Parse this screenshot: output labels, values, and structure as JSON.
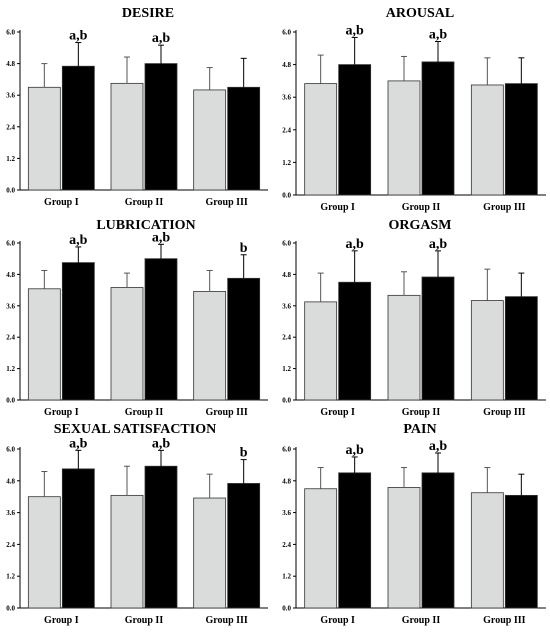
{
  "chart_data": [
    {
      "type": "bar",
      "title": "DESIRE",
      "categories": [
        "Group I",
        "Group II",
        "Group III"
      ],
      "ylim": [
        0,
        6
      ],
      "yticks": [
        "0.0",
        "1.2",
        "2.4",
        "3.6",
        "4.8",
        "6.0"
      ],
      "series": [
        {
          "color": "#d9dcdb",
          "values": [
            3.9,
            4.05,
            3.8
          ],
          "errors": [
            0.9,
            1.0,
            0.85
          ]
        },
        {
          "color": "#000000",
          "values": [
            4.7,
            4.8,
            3.9
          ],
          "errors": [
            0.9,
            0.7,
            1.1
          ]
        }
      ],
      "annotations": [
        "a,b",
        "a,b",
        ""
      ]
    },
    {
      "type": "bar",
      "title": "AROUSAL",
      "categories": [
        "Group I",
        "Group II",
        "Group III"
      ],
      "ylim": [
        0,
        6
      ],
      "yticks": [
        "0.0",
        "1.2",
        "2.4",
        "3.6",
        "4.8",
        "6.0"
      ],
      "series": [
        {
          "color": "#d9dcdb",
          "values": [
            4.1,
            4.2,
            4.05
          ],
          "errors": [
            1.05,
            0.9,
            1.0
          ]
        },
        {
          "color": "#000000",
          "values": [
            4.8,
            4.9,
            4.1
          ],
          "errors": [
            1.0,
            0.75,
            0.95
          ]
        }
      ],
      "annotations": [
        "a,b",
        "a,b",
        ""
      ]
    },
    {
      "type": "bar",
      "title": "LUBRICATION",
      "categories": [
        "Group I",
        "Group II",
        "Group III"
      ],
      "ylim": [
        0,
        6
      ],
      "yticks": [
        "0.0",
        "1.2",
        "2.4",
        "3.6",
        "4.8",
        "6.0"
      ],
      "series": [
        {
          "color": "#d9dcdb",
          "values": [
            4.25,
            4.3,
            4.15
          ],
          "errors": [
            0.7,
            0.55,
            0.8
          ]
        },
        {
          "color": "#000000",
          "values": [
            5.25,
            5.4,
            4.65
          ],
          "errors": [
            0.6,
            0.55,
            0.9
          ]
        }
      ],
      "annotations": [
        "a,b",
        "a,b",
        "b"
      ]
    },
    {
      "type": "bar",
      "title": "ORGASM",
      "categories": [
        "Group I",
        "Group II",
        "Group III"
      ],
      "ylim": [
        0,
        6
      ],
      "yticks": [
        "0.0",
        "1.2",
        "2.4",
        "3.6",
        "4.8",
        "6.0"
      ],
      "series": [
        {
          "color": "#d9dcdb",
          "values": [
            3.75,
            4.0,
            3.8
          ],
          "errors": [
            1.1,
            0.9,
            1.2
          ]
        },
        {
          "color": "#000000",
          "values": [
            4.5,
            4.7,
            3.95
          ],
          "errors": [
            1.2,
            1.0,
            0.9
          ]
        }
      ],
      "annotations": [
        "a,b",
        "a,b",
        ""
      ]
    },
    {
      "type": "bar",
      "title": "SEXUAL SATISFACTION",
      "categories": [
        "Group I",
        "Group II",
        "Group III"
      ],
      "ylim": [
        0,
        6
      ],
      "yticks": [
        "0.0",
        "1.2",
        "2.4",
        "3.6",
        "4.8",
        "6.0"
      ],
      "series": [
        {
          "color": "#d9dcdb",
          "values": [
            4.2,
            4.25,
            4.15
          ],
          "errors": [
            0.95,
            1.1,
            0.9
          ]
        },
        {
          "color": "#000000",
          "values": [
            5.25,
            5.35,
            4.7
          ],
          "errors": [
            0.7,
            0.6,
            0.9
          ]
        }
      ],
      "annotations": [
        "a,b",
        "a,b",
        "b"
      ]
    },
    {
      "type": "bar",
      "title": "PAIN",
      "categories": [
        "Group I",
        "Group II",
        "Group III"
      ],
      "ylim": [
        0,
        6
      ],
      "yticks": [
        "0.0",
        "1.2",
        "2.4",
        "3.6",
        "4.8",
        "6.0"
      ],
      "series": [
        {
          "color": "#d9dcdb",
          "values": [
            4.5,
            4.55,
            4.35
          ],
          "errors": [
            0.8,
            0.75,
            0.95
          ]
        },
        {
          "color": "#000000",
          "values": [
            5.1,
            5.1,
            4.25
          ],
          "errors": [
            0.6,
            0.75,
            0.8
          ]
        }
      ],
      "annotations": [
        "a,b",
        "a,b",
        ""
      ]
    }
  ]
}
